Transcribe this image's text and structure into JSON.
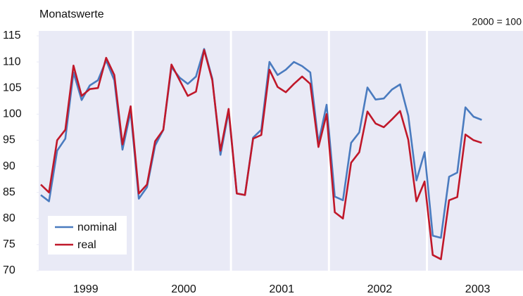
{
  "chart_data": {
    "type": "line",
    "title": "Monatswerte",
    "note": "2000 = 100",
    "categories": [
      null,
      null,
      null,
      null,
      null,
      "1999",
      null,
      null,
      null,
      null,
      null,
      null,
      null,
      null,
      null,
      null,
      null,
      "2000",
      null,
      null,
      null,
      null,
      null,
      null,
      null,
      null,
      null,
      null,
      null,
      "2001",
      null,
      null,
      null,
      null,
      null,
      null,
      null,
      null,
      null,
      null,
      null,
      "2002",
      null,
      null,
      null,
      null,
      null,
      null,
      null,
      null,
      null,
      null,
      null,
      "2003",
      null
    ],
    "series": [
      {
        "name": "nominal",
        "color": "#4a7bbf",
        "values": [
          84.5,
          83.3,
          93,
          95.3,
          108,
          102.7,
          105.5,
          106.5,
          110.3,
          106.5,
          93.2,
          100.5,
          83.8,
          86,
          94,
          97,
          109,
          107,
          105.8,
          107.2,
          112.5,
          106.8,
          92.2,
          100.5,
          84.8,
          84.5,
          95.5,
          97,
          110,
          107.5,
          108.5,
          110,
          109.2,
          108,
          94.5,
          101.8,
          84.2,
          83.5,
          94.5,
          96.5,
          105.1,
          102.8,
          103,
          104.7,
          105.7,
          99.7,
          87.3,
          92.7,
          76.7,
          76.3,
          88,
          88.8,
          101.3,
          99.5,
          98.9
        ]
      },
      {
        "name": "real",
        "color": "#c0182a",
        "values": [
          86.5,
          85,
          95,
          97,
          109.3,
          103.5,
          104.8,
          105,
          110.8,
          107.5,
          94.2,
          101.5,
          84.8,
          86.5,
          94.8,
          97,
          109.5,
          106.5,
          103.5,
          104.3,
          112.3,
          106.5,
          93,
          101,
          84.8,
          84.5,
          95.3,
          96,
          108.5,
          105.2,
          104.2,
          105.8,
          107.2,
          105.8,
          93.7,
          100,
          81.2,
          80,
          90.7,
          92.7,
          100.5,
          98.2,
          97.5,
          99,
          100.6,
          95.1,
          83.3,
          87.1,
          73,
          72.2,
          83.5,
          84.1,
          96.1,
          95,
          94.5
        ]
      }
    ],
    "ylim": [
      70,
      115
    ],
    "yticks": [
      70,
      75,
      80,
      85,
      90,
      95,
      100,
      105,
      110,
      115
    ],
    "legend": "lower left"
  }
}
